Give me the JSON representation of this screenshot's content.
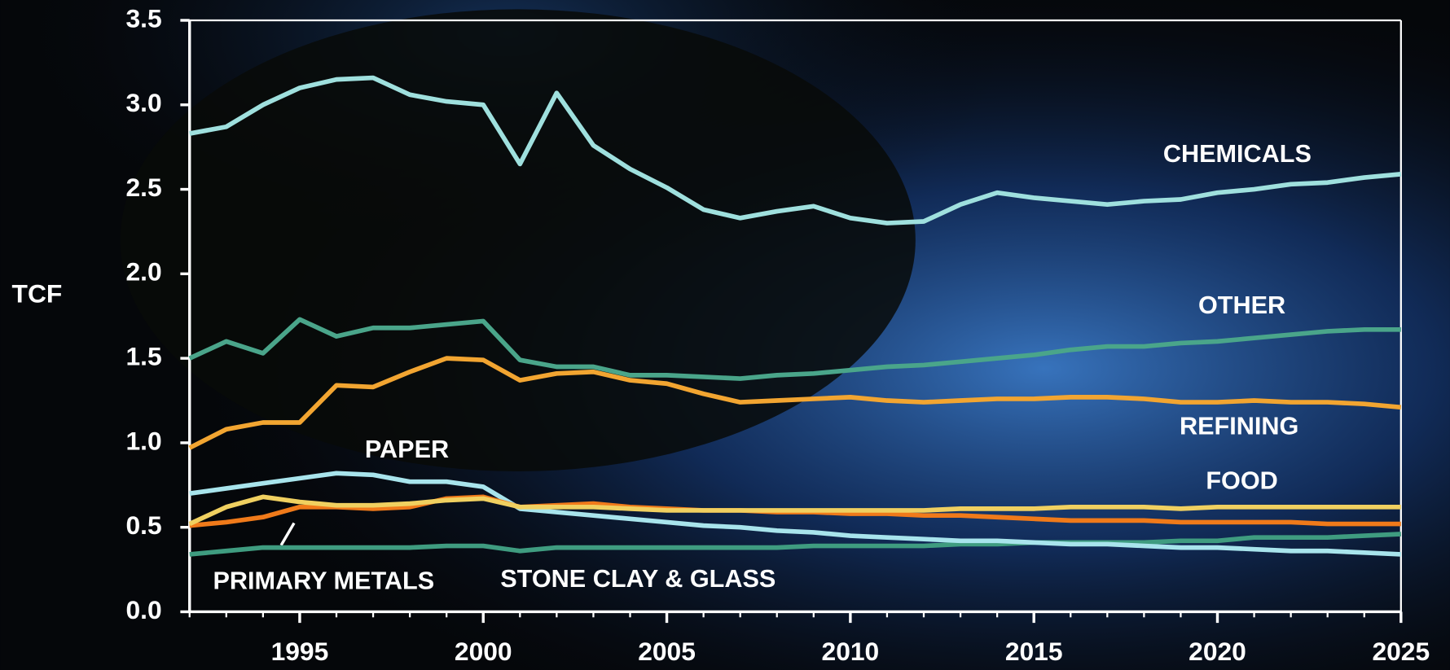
{
  "chart_data": {
    "type": "line",
    "y_label": "TCF",
    "x": [
      1992,
      1993,
      1994,
      1995,
      1996,
      1997,
      1998,
      1999,
      2000,
      2001,
      2002,
      2003,
      2004,
      2005,
      2006,
      2007,
      2008,
      2009,
      2010,
      2011,
      2012,
      2013,
      2014,
      2015,
      2016,
      2017,
      2018,
      2019,
      2020,
      2021,
      2022,
      2023,
      2024,
      2025
    ],
    "xlim": [
      1992,
      2025
    ],
    "xticks": [
      1995,
      2000,
      2005,
      2010,
      2015,
      2020,
      2025
    ],
    "ylim": [
      0,
      3.5
    ],
    "yticks": [
      {
        "value": 0,
        "label": "0.0"
      },
      0.5,
      {
        "value": 1,
        "label": "1.0"
      },
      1.5,
      {
        "value": 2,
        "label": "2.0"
      },
      2.5,
      {
        "value": 3,
        "label": "3.0"
      },
      3.5
    ],
    "series": [
      {
        "name": "CHEMICALS",
        "color": "#9fe0de",
        "values": [
          2.83,
          2.87,
          3.0,
          3.1,
          3.15,
          3.16,
          3.06,
          3.02,
          3.0,
          2.65,
          3.07,
          2.76,
          2.62,
          2.51,
          2.38,
          2.33,
          2.37,
          2.4,
          2.33,
          2.3,
          2.31,
          2.41,
          2.48,
          2.45,
          2.43,
          2.41,
          2.43,
          2.44,
          2.48,
          2.5,
          2.53,
          2.54,
          2.57,
          2.59
        ]
      },
      {
        "name": "OTHER",
        "color": "#4aa58a",
        "values": [
          1.5,
          1.6,
          1.53,
          1.73,
          1.63,
          1.68,
          1.68,
          1.7,
          1.72,
          1.49,
          1.45,
          1.45,
          1.4,
          1.4,
          1.39,
          1.38,
          1.4,
          1.41,
          1.43,
          1.45,
          1.46,
          1.48,
          1.5,
          1.52,
          1.55,
          1.57,
          1.57,
          1.59,
          1.6,
          1.62,
          1.64,
          1.66,
          1.67,
          1.67
        ]
      },
      {
        "name": "REFINING",
        "color": "#f2a531",
        "values": [
          0.97,
          1.08,
          1.12,
          1.12,
          1.34,
          1.33,
          1.42,
          1.5,
          1.49,
          1.37,
          1.41,
          1.42,
          1.37,
          1.35,
          1.29,
          1.24,
          1.25,
          1.26,
          1.27,
          1.25,
          1.24,
          1.25,
          1.26,
          1.26,
          1.27,
          1.27,
          1.26,
          1.24,
          1.24,
          1.25,
          1.24,
          1.24,
          1.23,
          1.21
        ]
      },
      {
        "name": "FOOD",
        "color": "#f0d060",
        "values": [
          0.52,
          0.62,
          0.68,
          0.65,
          0.63,
          0.63,
          0.64,
          0.66,
          0.67,
          0.62,
          0.62,
          0.62,
          0.61,
          0.6,
          0.6,
          0.6,
          0.6,
          0.6,
          0.6,
          0.6,
          0.6,
          0.61,
          0.61,
          0.61,
          0.62,
          0.62,
          0.62,
          0.61,
          0.62,
          0.62,
          0.62,
          0.62,
          0.62,
          0.62
        ]
      },
      {
        "name": "PAPER",
        "color": "#f07a1a",
        "values": [
          0.51,
          0.53,
          0.56,
          0.62,
          0.62,
          0.61,
          0.62,
          0.67,
          0.68,
          0.62,
          0.63,
          0.64,
          0.62,
          0.61,
          0.6,
          0.6,
          0.59,
          0.59,
          0.58,
          0.58,
          0.57,
          0.57,
          0.56,
          0.55,
          0.54,
          0.54,
          0.54,
          0.53,
          0.53,
          0.53,
          0.53,
          0.52,
          0.52,
          0.52
        ]
      },
      {
        "name": "PRIMARY METALS",
        "color": "#a8e4ec",
        "values": [
          0.7,
          0.73,
          0.76,
          0.79,
          0.82,
          0.81,
          0.77,
          0.77,
          0.74,
          0.61,
          0.59,
          0.57,
          0.55,
          0.53,
          0.51,
          0.5,
          0.48,
          0.47,
          0.45,
          0.44,
          0.43,
          0.42,
          0.42,
          0.41,
          0.4,
          0.4,
          0.39,
          0.38,
          0.38,
          0.37,
          0.36,
          0.36,
          0.35,
          0.34
        ]
      },
      {
        "name": "STONE CLAY & GLASS",
        "color": "#3f9c80",
        "values": [
          0.34,
          0.36,
          0.38,
          0.38,
          0.38,
          0.38,
          0.38,
          0.39,
          0.39,
          0.36,
          0.38,
          0.38,
          0.38,
          0.38,
          0.38,
          0.38,
          0.38,
          0.39,
          0.39,
          0.39,
          0.39,
          0.4,
          0.4,
          0.41,
          0.41,
          0.41,
          0.41,
          0.42,
          0.42,
          0.44,
          0.44,
          0.44,
          0.45,
          0.46
        ]
      }
    ]
  }
}
